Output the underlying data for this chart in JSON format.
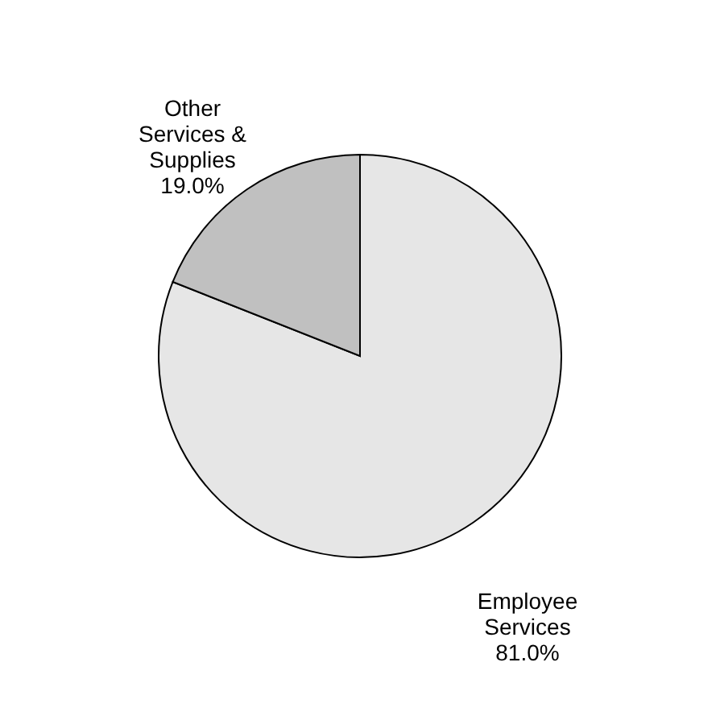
{
  "chart_data": {
    "type": "pie",
    "categories": [
      "Employee Services",
      "Other Services & Supplies"
    ],
    "values": [
      81.0,
      19.0
    ],
    "colors": [
      "#e6e6e6",
      "#c0c0c0"
    ],
    "value_labels": [
      "81.0%",
      "19.0%"
    ],
    "legend": false
  }
}
